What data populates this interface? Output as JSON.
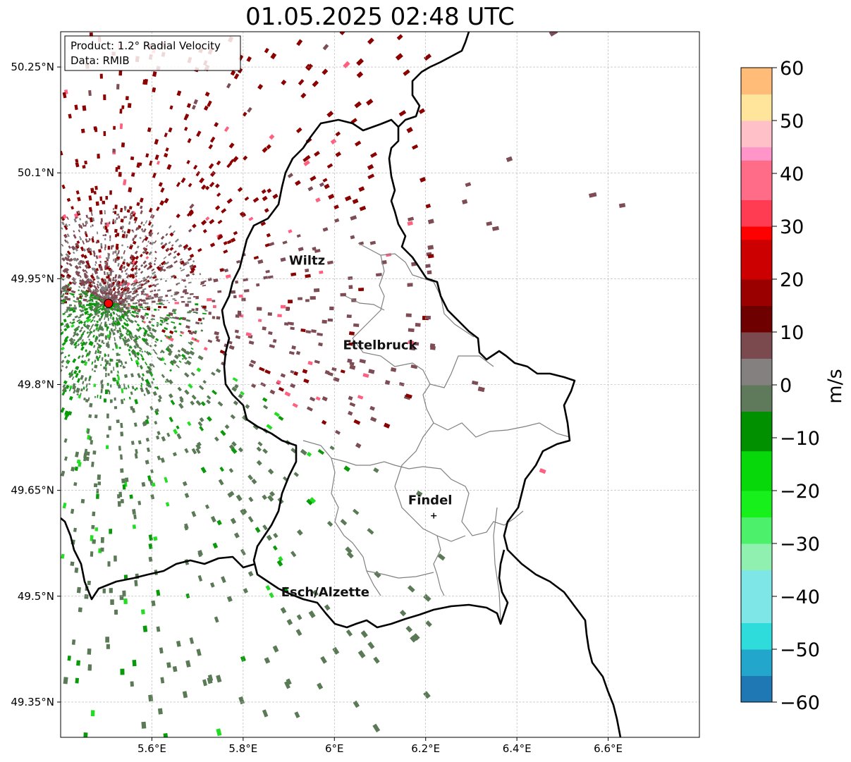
{
  "title": "01.05.2025 02:48 UTC",
  "info": {
    "product": "Product: 1.2° Radial Velocity",
    "source": "Data: RMIB"
  },
  "axes": {
    "lon_range": [
      5.4,
      6.8
    ],
    "lat_range": [
      49.3,
      50.3
    ],
    "lon_ticks": [
      5.6,
      5.8,
      6.0,
      6.2,
      6.4,
      6.6
    ],
    "lon_tick_labels": [
      "5.6°E",
      "5.8°E",
      "6°E",
      "6.2°E",
      "6.4°E",
      "6.6°E"
    ],
    "lat_ticks": [
      49.35,
      49.5,
      49.65,
      49.8,
      49.95,
      50.1,
      50.25
    ],
    "lat_tick_labels": [
      "49.35°N",
      "49.5°N",
      "49.65°N",
      "49.8°N",
      "49.95°N",
      "50.1°N",
      "50.25°N"
    ],
    "grid": true
  },
  "cities": [
    {
      "name": "Wiltz",
      "lon": 5.94,
      "lat": 49.97
    },
    {
      "name": "Ettelbruck",
      "lon": 6.1,
      "lat": 49.85
    },
    {
      "name": "Findel",
      "lon": 6.21,
      "lat": 49.63
    },
    {
      "name": "Esch/Alzette",
      "lon": 5.98,
      "lat": 49.5
    }
  ],
  "radar_site": {
    "lon": 5.505,
    "lat": 49.915
  },
  "colorbar": {
    "label": "m/s",
    "min": -60,
    "max": 60,
    "ticks": [
      60,
      50,
      40,
      30,
      20,
      10,
      0,
      -10,
      -20,
      -30,
      -40,
      -50,
      -60
    ],
    "tick_labels": [
      "60",
      "50",
      "40",
      "30",
      "20",
      "10",
      "0",
      "−10",
      "−20",
      "−30",
      "−40",
      "−50",
      "−60"
    ],
    "stops": [
      {
        "v": -60,
        "color": "#1f77b4"
      },
      {
        "v": -56,
        "color": "#23a6cc"
      },
      {
        "v": -50,
        "color": "#2fdcdc"
      },
      {
        "v": -44,
        "color": "#7ee6e6"
      },
      {
        "v": -36,
        "color": "#b8f0f0"
      },
      {
        "v": -35,
        "color": "#8ff0b0"
      },
      {
        "v": -30,
        "color": "#4cf06a"
      },
      {
        "v": -25,
        "color": "#18f01c"
      },
      {
        "v": -20,
        "color": "#07d80a"
      },
      {
        "v": -12,
        "color": "#009000"
      },
      {
        "v": -6,
        "color": "#006000"
      },
      {
        "v": -5,
        "color": "#5e7a5a"
      },
      {
        "v": 0,
        "color": "#858080"
      },
      {
        "v": 5,
        "color": "#7a4a4e"
      },
      {
        "v": 9,
        "color": "#6e0000"
      },
      {
        "v": 15,
        "color": "#9a0000"
      },
      {
        "v": 20,
        "color": "#cc0000"
      },
      {
        "v": 28,
        "color": "#ff0000"
      },
      {
        "v": 29,
        "color": "#ff3c52"
      },
      {
        "v": 35,
        "color": "#ff6c88"
      },
      {
        "v": 42,
        "color": "#ff95c8"
      },
      {
        "v": 46,
        "color": "#ffc0c8"
      },
      {
        "v": 50,
        "color": "#ffe49c"
      },
      {
        "v": 55,
        "color": "#ffbc78"
      },
      {
        "v": 60,
        "color": "#ff9a50"
      }
    ]
  },
  "series_colors": {
    "dark_red": "#8b0000",
    "gray_red": "#7d4c55",
    "gray_green": "#5a7a56",
    "green": "#089a08",
    "bright_green": "#22dd22",
    "pink": "#ff6080"
  }
}
